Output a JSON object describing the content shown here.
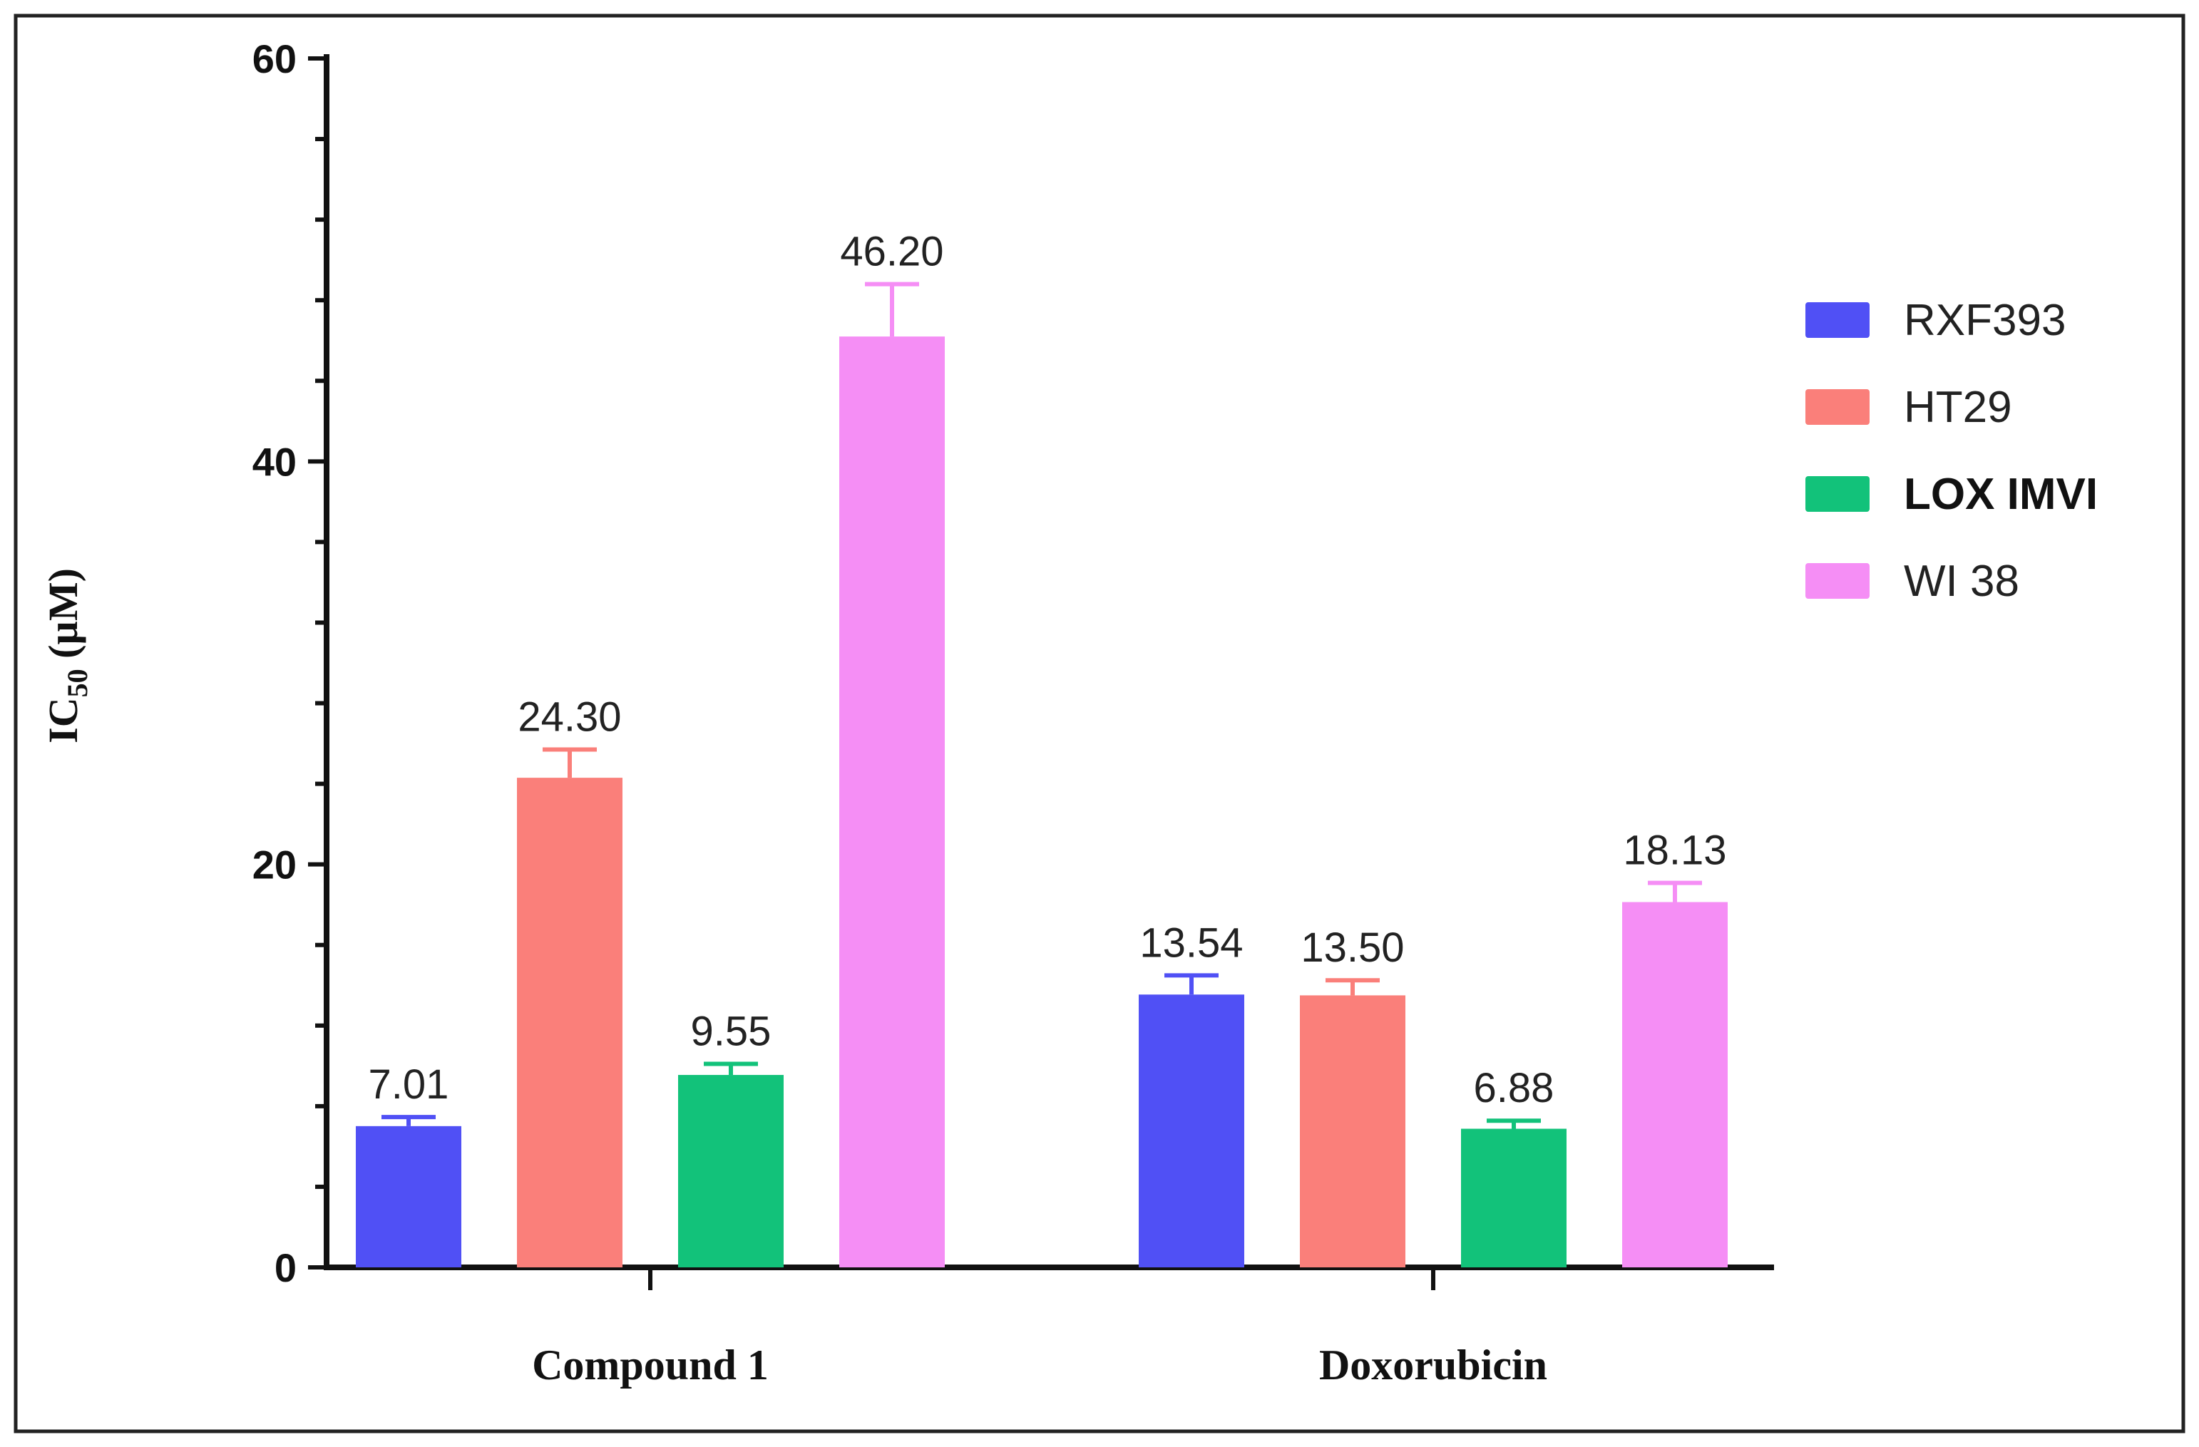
{
  "chart_data": {
    "type": "bar",
    "title": "",
    "xlabel": "",
    "ylabel_main": "IC",
    "ylabel_sub": "50",
    "ylabel_unit": " (µM)",
    "ylim": [
      0,
      60
    ],
    "yticks": [
      0,
      20,
      40,
      60
    ],
    "categories": [
      "Compound 1",
      "Doxorubicin"
    ],
    "legend_position": "right",
    "series": [
      {
        "name": "RXF393",
        "color": "#5050f5",
        "values": [
          7.01,
          13.54
        ],
        "errors": [
          0.45,
          0.95
        ],
        "labels": [
          "7.01",
          "13.54"
        ],
        "legend_bold": false
      },
      {
        "name": "HT29",
        "color": "#fa7f7a",
        "values": [
          24.3,
          13.5
        ],
        "errors": [
          1.4,
          0.75
        ],
        "labels": [
          "24.30",
          "13.50"
        ],
        "legend_bold": false
      },
      {
        "name": "LOX IMVI",
        "color": "#12c27a",
        "values": [
          9.55,
          6.88
        ],
        "errors": [
          0.55,
          0.4
        ],
        "labels": [
          "9.55",
          "6.88"
        ],
        "legend_bold": true
      },
      {
        "name": "WI 38",
        "color": "#f58ef5",
        "values": [
          46.2,
          18.13
        ],
        "errors": [
          2.6,
          0.95
        ],
        "labels": [
          "46.20",
          "18.13"
        ],
        "legend_bold": false
      }
    ]
  }
}
